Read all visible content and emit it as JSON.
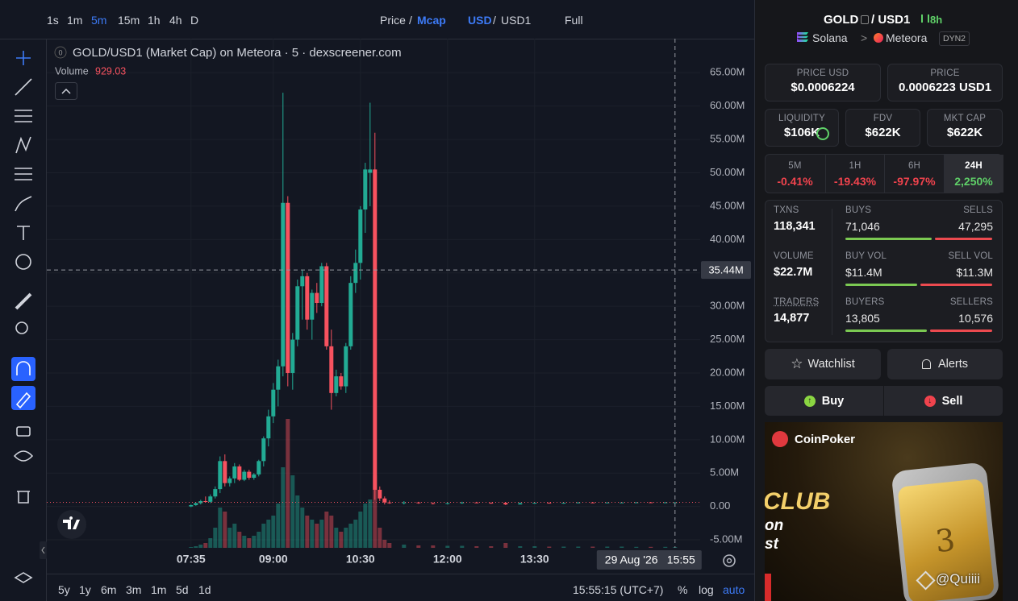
{
  "toolbar": {
    "intervals": [
      "1s",
      "1m",
      "5m",
      "15m",
      "1h",
      "4h",
      "D"
    ],
    "active_interval": "5m",
    "price_toggle": [
      "Price",
      "Mcap"
    ],
    "active_price": "Mcap",
    "currency_toggle": [
      "USD",
      "USD1"
    ],
    "active_currency": "USD",
    "separator": "/",
    "full": "Full"
  },
  "chart_data": {
    "type": "candlestick",
    "title": "GOLD/USD1 (Market Cap) on Meteora · 5 · dexscreener.com",
    "legend_badge": "0",
    "volume_label": "Volume",
    "volume_readout": 929.03,
    "x": [
      "07:35",
      "07:40",
      "07:45",
      "07:50",
      "07:55",
      "08:00",
      "08:05",
      "08:10",
      "08:15",
      "08:20",
      "08:25",
      "08:30",
      "08:35",
      "08:40",
      "08:45",
      "08:50",
      "08:55",
      "09:00",
      "09:05",
      "09:10",
      "09:15",
      "09:20",
      "09:25",
      "09:30",
      "09:35",
      "09:40",
      "09:45",
      "09:50",
      "09:55",
      "10:00",
      "10:05",
      "10:10",
      "10:15",
      "10:20",
      "10:25",
      "10:30",
      "10:35",
      "10:40",
      "10:45",
      "10:50",
      "10:55",
      "11:00",
      "11:15",
      "11:30",
      "11:45",
      "12:00",
      "12:15",
      "12:30",
      "12:45",
      "13:00",
      "13:15",
      "13:30",
      "13:45",
      "14:00",
      "14:15",
      "14:30",
      "14:45",
      "15:00",
      "15:15",
      "15:30",
      "15:45",
      "15:55"
    ],
    "open": [
      0.0,
      0.2,
      0.5,
      0.8,
      0.7,
      1.5,
      2.6,
      6.8,
      3.5,
      4.2,
      6.0,
      4.0,
      5.2,
      4.3,
      4.8,
      6.8,
      10.2,
      13.5,
      17.5,
      21.0,
      45.5,
      20.0,
      25.0,
      33.0,
      34.5,
      28.0,
      32.0,
      30.5,
      36.0,
      24.0,
      17.0,
      19.5,
      18.0,
      24.0,
      33.5,
      36.5,
      44.5,
      50.0,
      50.5,
      2.5,
      1.2,
      0.6,
      0.5,
      0.6,
      0.5,
      0.4,
      0.5,
      0.6,
      0.55,
      0.55,
      0.3,
      0.5,
      0.55,
      0.5,
      0.55,
      0.6,
      0.55,
      0.6,
      0.6,
      0.62,
      0.6,
      0.62
    ],
    "high": [
      0.3,
      0.6,
      1.0,
      1.5,
      1.8,
      3.0,
      7.5,
      7.8,
      4.5,
      6.5,
      6.3,
      5.5,
      5.5,
      5.0,
      7.0,
      10.5,
      14.5,
      18.5,
      22.0,
      62.0,
      46.5,
      26.0,
      34.0,
      35.5,
      35.0,
      32.5,
      33.5,
      36.5,
      36.5,
      26.5,
      20.5,
      20.0,
      24.5,
      34.5,
      38.5,
      45.0,
      51.5,
      60.5,
      56.0,
      3.0,
      1.5,
      0.9,
      0.8,
      0.7,
      0.6,
      0.6,
      0.7,
      0.7,
      0.6,
      0.6,
      0.6,
      0.6,
      0.6,
      0.6,
      0.65,
      0.65,
      0.6,
      0.65,
      0.65,
      0.66,
      0.66,
      0.64
    ],
    "low": [
      -0.1,
      0.1,
      0.3,
      0.6,
      0.5,
      1.2,
      2.0,
      3.0,
      3.0,
      3.5,
      3.8,
      3.8,
      4.0,
      4.0,
      4.5,
      6.0,
      9.0,
      12.5,
      15.0,
      19.5,
      18.0,
      17.5,
      24.0,
      28.0,
      26.5,
      25.0,
      29.0,
      30.0,
      23.5,
      14.5,
      16.5,
      17.5,
      17.0,
      23.5,
      32.0,
      34.0,
      41.0,
      45.0,
      1.0,
      0.8,
      0.3,
      0.4,
      0.3,
      0.4,
      0.3,
      0.3,
      0.4,
      0.5,
      0.4,
      0.2,
      0.3,
      0.4,
      0.45,
      0.4,
      0.5,
      0.5,
      0.5,
      0.55,
      0.55,
      0.58,
      0.58,
      0.6
    ],
    "close": [
      0.2,
      0.5,
      0.8,
      0.7,
      1.5,
      2.6,
      6.8,
      3.5,
      4.2,
      6.0,
      4.0,
      5.2,
      4.3,
      4.8,
      6.8,
      10.2,
      13.5,
      17.5,
      21.0,
      45.5,
      20.0,
      25.0,
      33.0,
      34.5,
      28.0,
      32.0,
      30.5,
      36.0,
      24.0,
      17.0,
      19.5,
      18.0,
      24.0,
      33.5,
      36.5,
      44.5,
      50.5,
      50.5,
      2.5,
      1.2,
      0.6,
      0.5,
      0.6,
      0.5,
      0.4,
      0.5,
      0.6,
      0.55,
      0.45,
      0.3,
      0.5,
      0.55,
      0.5,
      0.55,
      0.6,
      0.55,
      0.6,
      0.6,
      0.62,
      0.6,
      0.62,
      0.62
    ],
    "volume": [
      10,
      20,
      40,
      60,
      120,
      250,
      500,
      450,
      250,
      300,
      200,
      150,
      120,
      150,
      200,
      300,
      350,
      400,
      550,
      1000,
      1600,
      900,
      650,
      500,
      400,
      350,
      300,
      350,
      450,
      400,
      250,
      200,
      250,
      300,
      350,
      450,
      550,
      600,
      900,
      250,
      100,
      60,
      40,
      30,
      30,
      25,
      25,
      20,
      20,
      60,
      20,
      20,
      15,
      15,
      15,
      15,
      15,
      15,
      12,
      12,
      12,
      10
    ],
    "up_color": "#22ab94",
    "down_color": "#f7525f",
    "ylim": [
      -6.2,
      70.1
    ],
    "yticks": [
      {
        "value": 65,
        "label": "65.00M"
      },
      {
        "value": 60,
        "label": "60.00M"
      },
      {
        "value": 55,
        "label": "55.00M"
      },
      {
        "value": 50,
        "label": "50.00M"
      },
      {
        "value": 45,
        "label": "45.00M"
      },
      {
        "value": 40,
        "label": "40.00M"
      },
      {
        "value": 35,
        "label": "35.00M"
      },
      {
        "value": 30,
        "label": "30.00M"
      },
      {
        "value": 25,
        "label": "25.00M"
      },
      {
        "value": 20,
        "label": "20.00M"
      },
      {
        "value": 15,
        "label": "15.00M"
      },
      {
        "value": 10,
        "label": "10.00M"
      },
      {
        "value": 5,
        "label": "5.00M"
      },
      {
        "value": 0,
        "label": "0.00"
      },
      {
        "value": -5,
        "label": "-5.00M"
      }
    ],
    "xlim": [
      "05:06",
      "16:21"
    ],
    "xticks": [
      "07:35",
      "09:00",
      "10:30",
      "12:00",
      "13:30"
    ],
    "grid": true,
    "crosshair": {
      "value": 35.44,
      "label": "35.44M",
      "date": "29 Aug '26",
      "time": "15:55"
    }
  },
  "bottom_bar": {
    "ranges": [
      "5y",
      "1y",
      "6m",
      "3m",
      "1m",
      "5d",
      "1d"
    ],
    "clock": "15:55:15 (UTC+7)",
    "percent": "%",
    "log": "log",
    "auto": "auto"
  },
  "pair": {
    "base": "GOLD",
    "quote": "/ USD1",
    "age": "8h",
    "chain": "Solana",
    "separator": ">",
    "dex": "Meteora",
    "tag": "DYN2"
  },
  "stats": {
    "cards": [
      {
        "label": "PRICE USD",
        "value": "$0.0006224"
      },
      {
        "label": "PRICE",
        "value": "0.0006223 USD1"
      },
      {
        "label": "LIQUIDITY",
        "value": "$106K"
      },
      {
        "label": "FDV",
        "value": "$622K"
      },
      {
        "label": "MKT CAP",
        "value": "$622K"
      }
    ]
  },
  "changes": {
    "items": [
      {
        "label": "5M",
        "value": "-0.41%"
      },
      {
        "label": "1H",
        "value": "-19.43%"
      },
      {
        "label": "6H",
        "value": "-97.97%"
      },
      {
        "label": "24H",
        "value": "2,250%"
      }
    ],
    "active": "24H"
  },
  "activity": {
    "rows": [
      {
        "total": {
          "label": "TXNS",
          "value": "118,341"
        },
        "buy": {
          "label": "BUYS",
          "value": "71,046"
        },
        "sell": {
          "label": "SELLS",
          "value": "47,295"
        }
      },
      {
        "total": {
          "label": "VOLUME",
          "value": "$22.7M"
        },
        "buy": {
          "label": "BUY VOL",
          "value": "$11.4M"
        },
        "sell": {
          "label": "SELL VOL",
          "value": "$11.3M"
        }
      },
      {
        "total": {
          "label": "TRADERS",
          "value": "14,877"
        },
        "buy": {
          "label": "BUYERS",
          "value": "13,805"
        },
        "sell": {
          "label": "SELLERS",
          "value": "10,576"
        }
      }
    ]
  },
  "buttons": {
    "watchlist": "Watchlist",
    "alerts": "Alerts",
    "buy": "Buy",
    "sell": "Sell"
  },
  "ad": {
    "brand": "CoinPoker",
    "headline": "CLUB",
    "line2": "on",
    "line3": "st",
    "phone_digit": "3"
  },
  "watermark": "@Quiiii"
}
